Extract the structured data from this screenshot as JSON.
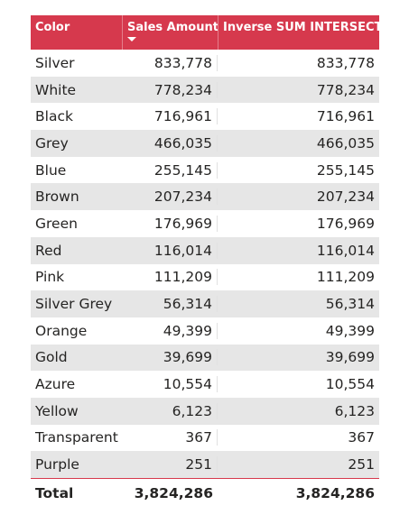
{
  "table": {
    "headers": {
      "color": "Color",
      "sales_amount": "Sales Amount",
      "inverse": "Inverse SUM INTERSECT"
    },
    "sort": {
      "column": "sales_amount",
      "direction": "descending",
      "icon": "sort-down-arrow-icon"
    },
    "rows": [
      {
        "color": "Silver",
        "sales": "833,778",
        "inverse": "833,778"
      },
      {
        "color": "White",
        "sales": "778,234",
        "inverse": "778,234"
      },
      {
        "color": "Black",
        "sales": "716,961",
        "inverse": "716,961"
      },
      {
        "color": "Grey",
        "sales": "466,035",
        "inverse": "466,035"
      },
      {
        "color": "Blue",
        "sales": "255,145",
        "inverse": "255,145"
      },
      {
        "color": "Brown",
        "sales": "207,234",
        "inverse": "207,234"
      },
      {
        "color": "Green",
        "sales": "176,969",
        "inverse": "176,969"
      },
      {
        "color": "Red",
        "sales": "116,014",
        "inverse": "116,014"
      },
      {
        "color": "Pink",
        "sales": "111,209",
        "inverse": "111,209"
      },
      {
        "color": "Silver Grey",
        "sales": "56,314",
        "inverse": "56,314"
      },
      {
        "color": "Orange",
        "sales": "49,399",
        "inverse": "49,399"
      },
      {
        "color": "Gold",
        "sales": "39,699",
        "inverse": "39,699"
      },
      {
        "color": "Azure",
        "sales": "10,554",
        "inverse": "10,554"
      },
      {
        "color": "Yellow",
        "sales": "6,123",
        "inverse": "6,123"
      },
      {
        "color": "Transparent",
        "sales": "367",
        "inverse": "367"
      },
      {
        "color": "Purple",
        "sales": "251",
        "inverse": "251"
      }
    ],
    "total": {
      "label": "Total",
      "sales": "3,824,286",
      "inverse": "3,824,286"
    }
  },
  "colors": {
    "header_background": "#d6394d",
    "header_text": "#ffffff",
    "alternate_row": "#e6e6e6",
    "text": "#252423"
  }
}
